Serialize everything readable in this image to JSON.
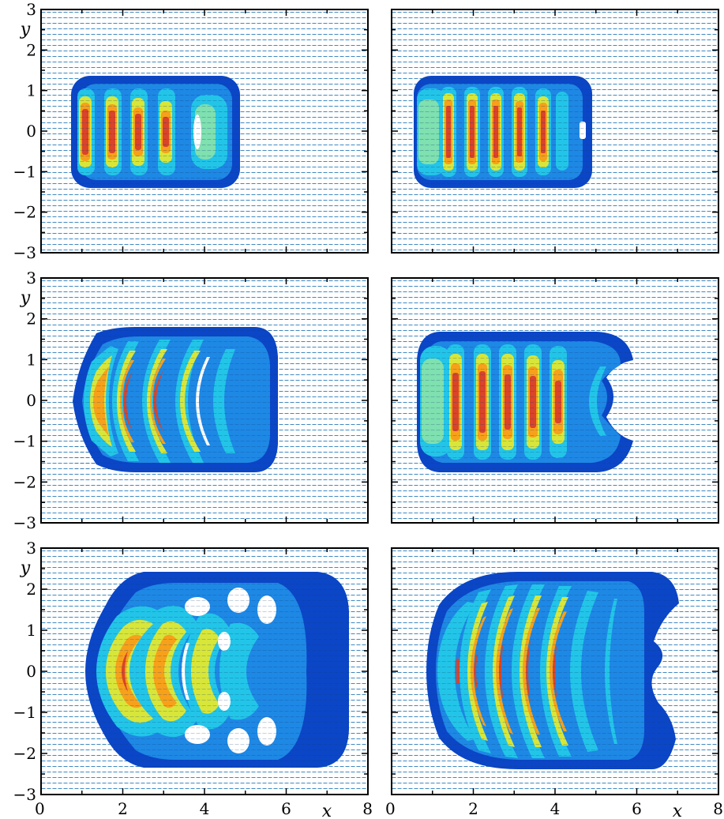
{
  "figure": {
    "axes": {
      "x_symbol": "x",
      "y_symbol": "y",
      "x_ticks": [
        "0",
        "2",
        "4",
        "6",
        "8"
      ],
      "y_ticks": [
        "3",
        "2",
        "1",
        "0",
        "−1",
        "−2",
        "−3"
      ],
      "x_range": [
        0,
        8
      ],
      "y_range": [
        -3,
        3
      ]
    },
    "colors": {
      "field_arrows": "#2b7bb9",
      "panel_frame": "#000000",
      "colormap": [
        "#00008f",
        "#0b46c7",
        "#1e88e5",
        "#22c5e8",
        "#7fe0b0",
        "#d8e63a",
        "#f7a11a",
        "#d9442a"
      ]
    },
    "panels": [
      {
        "id": "p1",
        "row": 1,
        "column": 1,
        "icon": "contour-field-plot"
      },
      {
        "id": "p2",
        "row": 1,
        "column": 2,
        "icon": "contour-field-plot"
      },
      {
        "id": "p3",
        "row": 2,
        "column": 1,
        "icon": "contour-field-plot"
      },
      {
        "id": "p4",
        "row": 2,
        "column": 2,
        "icon": "contour-field-plot"
      },
      {
        "id": "p5",
        "row": 3,
        "column": 1,
        "icon": "contour-field-plot"
      },
      {
        "id": "p6",
        "row": 3,
        "column": 2,
        "icon": "contour-field-plot"
      }
    ]
  }
}
